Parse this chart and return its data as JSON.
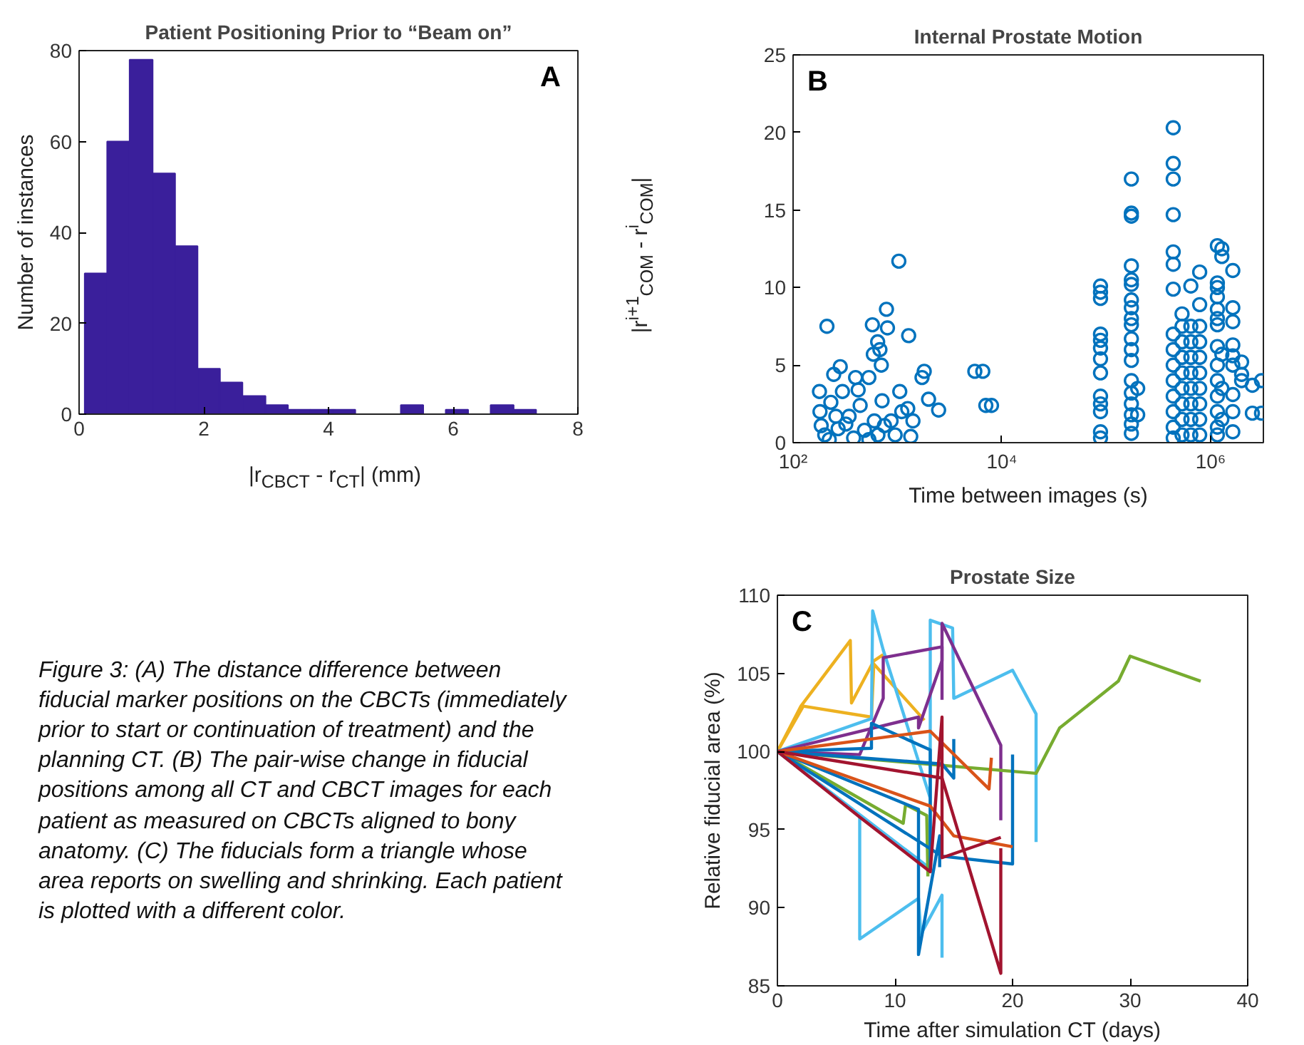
{
  "chart_data": [
    {
      "type": "histogram",
      "title": "Patient Positioning Prior to “Beam on”",
      "xlabel": "|r$_{CBCT}$ - r$_{CT}$| (mm)",
      "ylabel": "Number of instances",
      "bins": [
        0.09,
        0.45,
        0.81,
        1.18,
        1.54,
        1.9,
        2.26,
        2.62,
        2.99,
        3.35,
        3.71,
        4.07,
        4.43,
        4.79,
        5.16,
        5.52,
        5.88,
        6.24,
        6.6,
        6.97,
        7.33
      ],
      "values": [
        31,
        60,
        78,
        53,
        37,
        10,
        7,
        4,
        2,
        1,
        1,
        1,
        0,
        0,
        2,
        0,
        1,
        0,
        2,
        1
      ],
      "color": "#3a1f9b",
      "xlim": [
        0,
        8
      ],
      "xticks": [
        0,
        2,
        4,
        6,
        8
      ],
      "ylim": [
        0,
        80
      ],
      "yticks": [
        0,
        20,
        40,
        60,
        80
      ],
      "grid": false,
      "annotations": [
        "A",
        "Figure 3: (A) The distance difference between fiducial marker positions on the CBCTs (immediately prior to start or continuation of treatment) and the planning CT. (B) The pair-wise change in fiducial positions among all CT and CBCT images for each patient as measured on CBCTs aligned to bony anatomy. (C) The fiducials form a triangle whose area reports on swelling and shrinking. Each patient is plotted with a different color."
      ]
    },
    {
      "type": "scatter",
      "title": "Internal Prostate Motion",
      "xlabel": "Time between images (s)",
      "ylabel": "|r$^{i+1}$$_{COM}$ - r$^{i}$$_{COM}$|",
      "log": "x",
      "marker": "circle",
      "color": "#0072bd",
      "x": [
        179,
        211,
        245,
        283,
        181,
        186,
        201,
        222,
        257,
        297,
        344,
        397,
        439,
        483,
        532,
        532,
        587,
        575,
        646,
        679,
        700,
        784,
        802,
        712,
        750,
        868,
        1031,
        1052,
        1280,
        1254,
        1407,
        1340,
        1804,
        1718,
        1985,
        2478,
        5508,
        6566,
        7020,
        7957,
        230,
        270,
        320,
        380,
        420,
        600,
        650,
        950,
        1100,
        88100,
        88100,
        88100,
        88100,
        88100,
        88100,
        88100,
        88100,
        88100,
        88100,
        88100,
        88100,
        88100,
        174000,
        174000,
        174000,
        174000,
        174000,
        174000,
        174000,
        174000,
        174000,
        174000,
        174000,
        174000,
        174000,
        174000,
        174000,
        174000,
        174000,
        174000,
        174000,
        200000,
        200000,
        438000,
        438000,
        438000,
        438000,
        438000,
        438000,
        438000,
        438000,
        438000,
        438000,
        438000,
        438000,
        438000,
        438000,
        438000,
        532000,
        532000,
        532000,
        532000,
        532000,
        532000,
        532000,
        532000,
        532000,
        646000,
        646000,
        646000,
        646000,
        646000,
        646000,
        646000,
        646000,
        646000,
        785000,
        785000,
        785000,
        785000,
        785000,
        785000,
        785000,
        785000,
        785000,
        785000,
        1160000,
        1160000,
        1160000,
        1160000,
        1160000,
        1160000,
        1160000,
        1160000,
        1160000,
        1160000,
        1160000,
        1160000,
        1160000,
        1160000,
        1280000,
        1280000,
        1280000,
        1280000,
        1280000,
        1630000,
        1630000,
        1630000,
        1630000,
        1630000,
        1630000,
        1630000,
        1630000,
        1630000,
        1980000,
        1980000,
        1980000,
        2510000,
        2510000,
        3070000,
        3070000
      ],
      "values": [
        3.3,
        7.5,
        4.4,
        4.9,
        2.0,
        1.1,
        0.5,
        0.2,
        1.7,
        3.3,
        1.7,
        4.2,
        2.4,
        0.8,
        0.2,
        4.2,
        5.7,
        7.6,
        6.5,
        6.0,
        5.0,
        8.6,
        7.4,
        2.7,
        1.1,
        1.4,
        11.7,
        3.3,
        6.9,
        2.2,
        1.4,
        0.4,
        4.6,
        4.2,
        2.8,
        2.1,
        4.6,
        4.6,
        2.4,
        2.4,
        2.6,
        0.9,
        1.2,
        0.3,
        3.4,
        1.4,
        0.5,
        0.5,
        2.0,
        10.1,
        9.7,
        9.3,
        7.0,
        6.6,
        6.1,
        5.4,
        4.5,
        3.0,
        2.5,
        2.0,
        0.7,
        0.3,
        17.0,
        14.8,
        14.6,
        11.4,
        10.5,
        10.2,
        9.2,
        8.7,
        8.0,
        7.6,
        6.7,
        6.0,
        5.3,
        4.0,
        3.2,
        2.5,
        1.8,
        1.2,
        0.6,
        1.8,
        3.5,
        20.3,
        18.0,
        17.0,
        14.7,
        12.3,
        11.5,
        9.9,
        7.0,
        6.0,
        5.0,
        4.0,
        3.0,
        2.0,
        1.0,
        0.3,
        0.5,
        1.5,
        2.5,
        3.5,
        4.5,
        5.5,
        6.5,
        7.5,
        8.3,
        0.5,
        1.5,
        2.5,
        3.5,
        4.5,
        5.5,
        6.5,
        7.5,
        10.1,
        0.5,
        1.5,
        2.5,
        3.5,
        4.5,
        5.5,
        6.5,
        7.5,
        8.9,
        11.0,
        12.7,
        10.3,
        10.0,
        9.4,
        8.6,
        8.0,
        7.6,
        6.2,
        5.0,
        4.0,
        3.0,
        2.0,
        1.0,
        0.5,
        12.5,
        12.0,
        5.7,
        3.5,
        1.5,
        11.1,
        8.7,
        7.8,
        6.3,
        5.6,
        5.0,
        3.1,
        2.0,
        0.7,
        5.2,
        4.4,
        4.0,
        3.7,
        1.9,
        1.9,
        4.0
      ],
      "xlim": [
        100,
        3200000
      ],
      "xticks": [
        {
          "value": 100,
          "label": "10²"
        },
        {
          "value": 10000,
          "label": "10⁴"
        },
        {
          "value": 1000000,
          "label": "10⁶"
        }
      ],
      "ylim": [
        0,
        25
      ],
      "yticks": [
        0,
        5,
        10,
        15,
        20,
        25
      ],
      "grid": false,
      "annotations": [
        "B"
      ]
    },
    {
      "type": "line",
      "title": "Prostate Size",
      "xlabel": "Time after simulation CT (days)",
      "ylabel": "Relative fiducial area (%)",
      "line_style": "solid",
      "grid": false,
      "series": [
        {
          "color": "#edb120",
          "x": [
            0,
            2,
            6.2,
            6.3,
            8.2,
            9
          ],
          "values": [
            100,
            102.9,
            107.1,
            103.1,
            105.8,
            106.2
          ]
        },
        {
          "color": "#edb120",
          "x": [
            0,
            2.2,
            8,
            8.2,
            12.5
          ],
          "values": [
            100,
            102.9,
            102.2,
            105.6,
            102.0
          ]
        },
        {
          "color": "#4dbeee",
          "x": [
            0,
            7,
            7,
            12,
            12.2,
            14,
            14
          ],
          "values": [
            100,
            95.9,
            88,
            90.6,
            88.3,
            90.8,
            86.8
          ]
        },
        {
          "color": "#4dbeee",
          "x": [
            0,
            8,
            8.1,
            9,
            13
          ],
          "values": [
            100,
            102.1,
            109,
            106.5,
            97
          ]
        },
        {
          "color": "#4dbeee",
          "x": [
            0,
            13,
            13,
            14.9,
            15,
            20,
            22,
            22
          ],
          "values": [
            100,
            92.5,
            108.4,
            107.9,
            103.4,
            105.2,
            102.4,
            94.2
          ]
        },
        {
          "color": "#7e2f8e",
          "x": [
            0,
            7,
            9,
            9,
            14,
            14
          ],
          "values": [
            100,
            99.8,
            103.4,
            106,
            106.7,
            103.3
          ]
        },
        {
          "color": "#7e2f8e",
          "x": [
            0,
            12,
            12,
            14,
            14,
            19,
            19
          ],
          "values": [
            100,
            102.2,
            101.5,
            105.8,
            108.2,
            100.4,
            95.6
          ]
        },
        {
          "color": "#77ac30",
          "x": [
            0,
            22,
            24,
            29,
            30,
            36
          ],
          "values": [
            100,
            98.6,
            101.5,
            104.5,
            106.1,
            104.5
          ]
        },
        {
          "color": "#77ac30",
          "x": [
            0,
            10.7,
            10.9,
            12.7,
            12.8
          ],
          "values": [
            100,
            95.4,
            96.6,
            95.9,
            92
          ]
        },
        {
          "color": "#0072bd",
          "x": [
            0,
            8,
            8,
            13,
            13
          ],
          "values": [
            100,
            100.2,
            101.8,
            100.1,
            92.5
          ]
        },
        {
          "color": "#0072bd",
          "x": [
            0,
            12,
            12,
            13.8,
            13.8
          ],
          "values": [
            100,
            96.3,
            87,
            94.6,
            92.6
          ]
        },
        {
          "color": "#0072bd",
          "x": [
            0,
            14,
            15,
            15
          ],
          "values": [
            100,
            99.2,
            98.3,
            100.8
          ]
        },
        {
          "color": "#0072bd",
          "x": [
            0,
            14,
            20,
            20
          ],
          "values": [
            100,
            93.3,
            92.8,
            99.8
          ]
        },
        {
          "color": "#d95319",
          "x": [
            0,
            13,
            18,
            18.2
          ],
          "values": [
            100,
            101.3,
            97.6,
            99.6
          ]
        },
        {
          "color": "#d95319",
          "x": [
            0,
            13,
            15,
            20
          ],
          "values": [
            100,
            96.5,
            94.6,
            93.9
          ]
        },
        {
          "color": "#a2142f",
          "x": [
            0,
            7,
            13,
            14,
            14,
            19
          ],
          "values": [
            100,
            95.8,
            92.3,
            102.2,
            93.2,
            94.5
          ]
        },
        {
          "color": "#a2142f",
          "x": [
            0,
            14,
            19,
            19
          ],
          "values": [
            100,
            98.3,
            85.8,
            93.8
          ]
        }
      ],
      "xlim": [
        0,
        40
      ],
      "xticks": [
        0,
        10,
        20,
        30,
        40
      ],
      "ylim": [
        85,
        110
      ],
      "yticks": [
        85,
        90,
        95,
        100,
        105,
        110
      ],
      "annotations": [
        "C"
      ]
    }
  ]
}
